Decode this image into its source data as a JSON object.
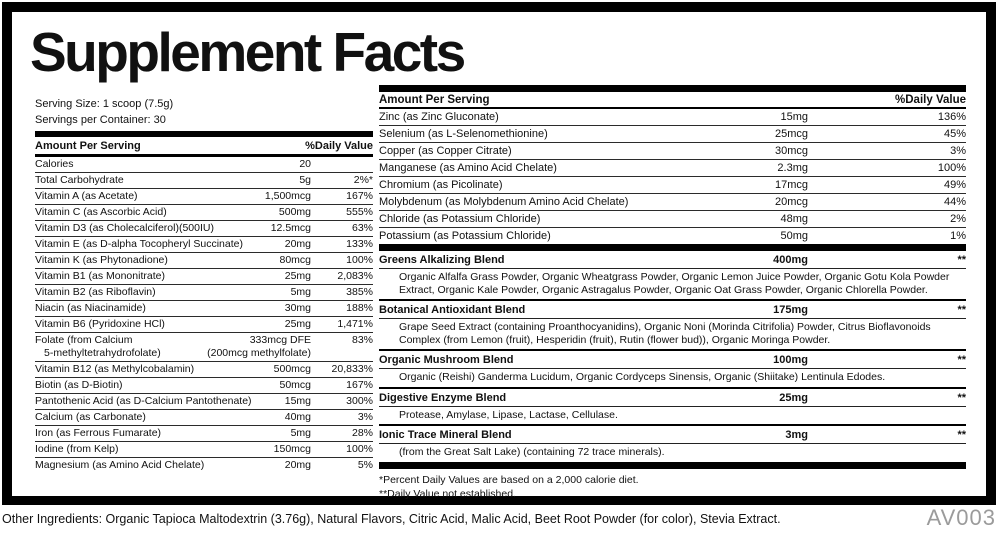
{
  "title": "Supplement Facts",
  "serving_info": {
    "serving_size": "Serving Size: 1 scoop (7.5g)",
    "servings_per_container": "Servings per Container: 30"
  },
  "left_table": {
    "header": {
      "amount_label": "Amount Per Serving",
      "dv_label": "%Daily Value"
    },
    "rows": [
      {
        "name": "Calories",
        "amount": "20",
        "dv": ""
      },
      {
        "name": "Total Carbohydrate",
        "amount": "5g",
        "dv": "2%*"
      },
      {
        "name": "Vitamin A (as Acetate)",
        "amount": "1,500mcg",
        "dv": "167%"
      },
      {
        "name": "Vitamin C (as Ascorbic Acid)",
        "amount": "500mg",
        "dv": "555%"
      },
      {
        "name": "Vitamin D3 (as Cholecalciferol)(500IU)",
        "amount": "12.5mcg",
        "dv": "63%"
      },
      {
        "name": "Vitamin E (as D-alpha Tocopheryl Succinate)",
        "amount": "20mg",
        "dv": "133%"
      },
      {
        "name": "Vitamin K (as Phytonadione)",
        "amount": "80mcg",
        "dv": "100%"
      },
      {
        "name": "Vitamin B1 (as Mononitrate)",
        "amount": "25mg",
        "dv": "2,083%"
      },
      {
        "name": "Vitamin B2 (as Riboflavin)",
        "amount": "5mg",
        "dv": "385%"
      },
      {
        "name": "Niacin (as Niacinamide)",
        "amount": "30mg",
        "dv": "188%"
      },
      {
        "name": "Vitamin B6 (Pyridoxine HCl)",
        "amount": "25mg",
        "dv": "1,471%"
      },
      {
        "name": "Folate (from Calcium",
        "name2": "5-methyltetrahydrofolate)",
        "amount": "333mcg DFE",
        "amount2": "(200mcg methylfolate)",
        "dv": "83%"
      },
      {
        "name": "Vitamin B12 (as Methylcobalamin)",
        "amount": "500mcg",
        "dv": "20,833%"
      },
      {
        "name": "Biotin (as D-Biotin)",
        "amount": "50mcg",
        "dv": "167%"
      },
      {
        "name": "Pantothenic Acid (as D-Calcium Pantothenate)",
        "amount": "15mg",
        "dv": "300%"
      },
      {
        "name": "Calcium (as Carbonate)",
        "amount": "40mg",
        "dv": "3%"
      },
      {
        "name": "Iron (as Ferrous Fumarate)",
        "amount": "5mg",
        "dv": "28%"
      },
      {
        "name": "Iodine (from Kelp)",
        "amount": "150mcg",
        "dv": "100%"
      },
      {
        "name": "Magnesium (as Amino Acid Chelate)",
        "amount": "20mg",
        "dv": "5%"
      }
    ]
  },
  "right_table": {
    "header": {
      "amount_label": "Amount Per Serving",
      "dv_label": "%Daily Value"
    },
    "rows": [
      {
        "name": "Zinc (as Zinc Gluconate)",
        "amount": "15mg",
        "dv": "136%"
      },
      {
        "name": "Selenium (as L-Selenomethionine)",
        "amount": "25mcg",
        "dv": "45%"
      },
      {
        "name": "Copper (as Copper Citrate)",
        "amount": "30mcg",
        "dv": "3%"
      },
      {
        "name": "Manganese (as Amino Acid Chelate)",
        "amount": "2.3mg",
        "dv": "100%"
      },
      {
        "name": "Chromium (as Picolinate)",
        "amount": "17mcg",
        "dv": "49%"
      },
      {
        "name": "Molybdenum (as Molybdenum Amino Acid Chelate)",
        "amount": "20mcg",
        "dv": "44%"
      },
      {
        "name": "Chloride (as Potassium Chloride)",
        "amount": "48mg",
        "dv": "2%"
      },
      {
        "name": "Potassium (as Potassium Chloride)",
        "amount": "50mg",
        "dv": "1%"
      }
    ],
    "blends": [
      {
        "name": "Greens Alkalizing Blend",
        "amount": "400mg",
        "dv": "**",
        "description": "Organic Alfalfa Grass Powder, Organic Wheatgrass Powder, Organic Lemon Juice Powder, Organic Gotu Kola Powder Extract, Organic Kale Powder, Organic Astragalus Powder, Organic Oat Grass Powder, Organic Chlorella Powder."
      },
      {
        "name": "Botanical Antioxidant Blend",
        "amount": "175mg",
        "dv": "**",
        "description": "Grape Seed Extract (containing Proanthocyanidins), Organic Noni (Morinda Citrifolia) Powder, Citrus Bioflavonoids Complex (from Lemon (fruit), Hesperidin (fruit), Rutin (flower bud)), Organic Moringa Powder."
      },
      {
        "name": "Organic Mushroom Blend",
        "amount": "100mg",
        "dv": "**",
        "description": "Organic (Reishi) Ganderma Lucidum, Organic Cordyceps Sinensis, Organic (Shiitake) Lentinula Edodes."
      },
      {
        "name": "Digestive Enzyme Blend",
        "amount": "25mg",
        "dv": "**",
        "description": "Protease, Amylase, Lipase, Lactase, Cellulase."
      },
      {
        "name": "Ionic Trace Mineral Blend",
        "amount": "3mg",
        "dv": "**",
        "description": "(from the Great Salt Lake) (containing 72 trace minerals)."
      }
    ],
    "footnotes": [
      "*Percent Daily Values are based on a 2,000 calorie diet.",
      "**Daily Value not established."
    ]
  },
  "footer": {
    "other_ingredients": "Other Ingredients: Organic Tapioca Maltodextrin (3.76g), Natural Flavors, Citric Acid, Malic Acid, Beet Root Powder (for color), Stevia Extract.",
    "code": "AV003"
  },
  "colors": {
    "text": "#111111",
    "frame": "#000000",
    "code_gray": "#9b9b9b"
  }
}
